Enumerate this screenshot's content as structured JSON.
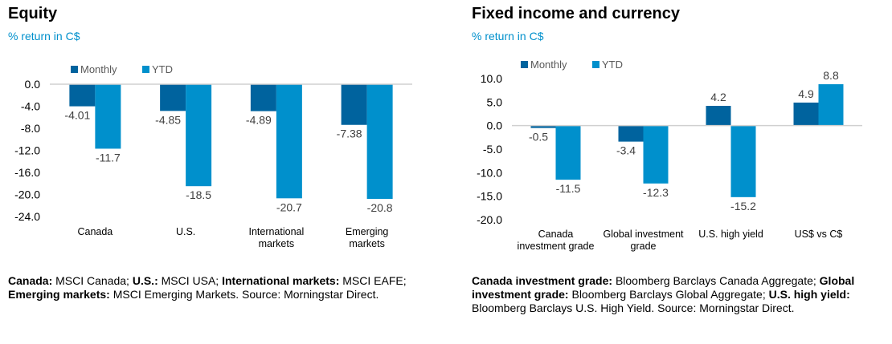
{
  "colors": {
    "monthly": "#00639E",
    "ytd": "#0090CC",
    "subtitle": "#0090CC",
    "axis": "#D0D0D0",
    "label": "#404040"
  },
  "equity": {
    "title": "Equity",
    "subtitle": "% return in C$",
    "note": [
      {
        "text": "Canada:",
        "bold": true
      },
      {
        "text": " MSCI Canada; ",
        "bold": false
      },
      {
        "text": "U.S.:",
        "bold": true
      },
      {
        "text": " MSCI USA; ",
        "bold": false
      },
      {
        "text": "International markets:",
        "bold": true
      },
      {
        "text": " MSCI EAFE; ",
        "bold": false
      },
      {
        "text": "Emerging markets:",
        "bold": true
      },
      {
        "text": " MSCI Emerging Markets. Source: Morningstar Direct.",
        "bold": false
      }
    ]
  },
  "fixed": {
    "title": "Fixed income and currency",
    "subtitle": "% return in C$",
    "note": [
      {
        "text": "Canada investment grade:",
        "bold": true
      },
      {
        "text": " Bloomberg Barclays Canada Aggregate; ",
        "bold": false
      },
      {
        "text": "Global investment grade:",
        "bold": true
      },
      {
        "text": " Bloomberg Barclays Global Aggregate; ",
        "bold": false
      },
      {
        "text": "U.S. high yield:",
        "bold": true
      },
      {
        "text": " Bloomberg Barclays U.S. High Yield. Source: Morningstar Direct.",
        "bold": false
      }
    ]
  },
  "chart_data": [
    {
      "type": "bar",
      "title": "Equity",
      "ylabel": "% return in C$",
      "categories": [
        [
          "Canada"
        ],
        [
          "U.S."
        ],
        [
          "International",
          "markets"
        ],
        [
          "Emerging",
          "markets"
        ]
      ],
      "series": [
        {
          "name": "Monthly",
          "values": [
            -4.01,
            -4.85,
            -4.89,
            -7.38
          ],
          "labels": [
            "-4.01",
            "-4.85",
            "-4.89",
            "-7.38"
          ]
        },
        {
          "name": "YTD",
          "values": [
            -11.7,
            -18.5,
            -20.7,
            -20.8
          ],
          "labels": [
            "-11.7",
            "-18.5",
            "-20.7",
            "-20.8"
          ]
        }
      ],
      "ylim": [
        -24,
        0
      ],
      "yticks": [
        "0.0",
        "-4.0",
        "-8.0",
        "-12.0",
        "-16.0",
        "-20.0",
        "-24.0"
      ],
      "legend": "top-left",
      "grid": false
    },
    {
      "type": "bar",
      "title": "Fixed income and currency",
      "ylabel": "% return in C$",
      "categories": [
        [
          "Canada",
          "investment grade"
        ],
        [
          "Global investment",
          "grade"
        ],
        [
          "U.S. high yield"
        ],
        [
          "US$ vs C$"
        ]
      ],
      "series": [
        {
          "name": "Monthly",
          "values": [
            -0.5,
            -3.4,
            4.2,
            4.9
          ],
          "labels": [
            "-0.5",
            "-3.4",
            "4.2",
            "4.9"
          ]
        },
        {
          "name": "YTD",
          "values": [
            -11.5,
            -12.3,
            -15.2,
            8.8
          ],
          "labels": [
            "-11.5",
            "-12.3",
            "-15.2",
            "8.8"
          ]
        }
      ],
      "ylim": [
        -20,
        10
      ],
      "yticks": [
        "10.0",
        "5.0",
        "0.0",
        "-5.0",
        "-10.0",
        "-15.0",
        "-20.0"
      ],
      "legend": "top-left",
      "grid": false
    }
  ]
}
